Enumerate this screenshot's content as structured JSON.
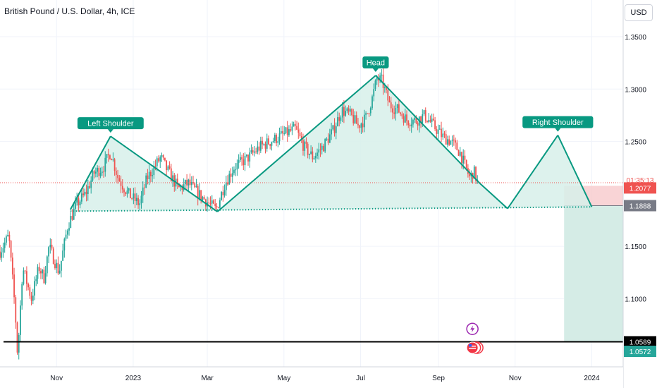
{
  "header": {
    "title": "British Pound / U.S. Dollar, 4h, ICE",
    "currency_button": "USD"
  },
  "colors": {
    "up": "#26a69a",
    "down": "#ef5350",
    "pattern_line": "#089981",
    "pattern_fill": "#d7f0ea",
    "neckline": "#089981",
    "stop_zone": "#f7c9cc",
    "target_zone": "#d5ece6",
    "support_line": "#000000",
    "price_line": "#ef5350",
    "grid": "#f0f3fa",
    "axis_text": "#131722",
    "icon_purple": "#9c27b0",
    "icon_red": "#f23645"
  },
  "chart_data": {
    "type": "candlestick",
    "symbol": "British Pound / U.S. Dollar, 4h, ICE",
    "x_ticks": [
      "Nov",
      "2023",
      "Mar",
      "May",
      "Jul",
      "Sep",
      "Nov",
      "2024"
    ],
    "x_tick_dates": [
      "2022-11-01",
      "2023-01-01",
      "2023-03-01",
      "2023-05-01",
      "2023-07-01",
      "2023-09-01",
      "2023-11-01",
      "2024-01-01"
    ],
    "y_ticks": [
      "1.3500",
      "1.3000",
      "1.2500",
      "1.1500",
      "1.1000"
    ],
    "y_tick_values": [
      1.35,
      1.3,
      1.25,
      1.15,
      1.1
    ],
    "ylim": [
      1.035,
      1.385
    ],
    "xlim": [
      "2022-09-17",
      "2024-01-26"
    ],
    "price_path": [
      [
        "2022-09-17",
        1.145
      ],
      [
        "2022-09-24",
        1.16
      ],
      [
        "2022-09-29",
        1.09
      ],
      [
        "2022-10-01",
        1.045
      ],
      [
        "2022-10-05",
        1.13
      ],
      [
        "2022-10-12",
        1.1
      ],
      [
        "2022-10-18",
        1.13
      ],
      [
        "2022-10-22",
        1.12
      ],
      [
        "2022-10-26",
        1.15
      ],
      [
        "2022-11-03",
        1.125
      ],
      [
        "2022-11-10",
        1.17
      ],
      [
        "2022-11-17",
        1.19
      ],
      [
        "2022-11-24",
        1.2
      ],
      [
        "2022-12-01",
        1.22
      ],
      [
        "2022-12-08",
        1.225
      ],
      [
        "2022-12-14",
        1.24
      ],
      [
        "2022-12-20",
        1.215
      ],
      [
        "2022-12-28",
        1.2
      ],
      [
        "2023-01-06",
        1.19
      ],
      [
        "2023-01-12",
        1.215
      ],
      [
        "2023-01-23",
        1.235
      ],
      [
        "2023-01-27",
        1.225
      ],
      [
        "2023-02-06",
        1.205
      ],
      [
        "2023-02-14",
        1.21
      ],
      [
        "2023-02-22",
        1.2
      ],
      [
        "2023-03-03",
        1.19
      ],
      [
        "2023-03-08",
        1.185
      ],
      [
        "2023-03-15",
        1.21
      ],
      [
        "2023-03-22",
        1.225
      ],
      [
        "2023-04-03",
        1.235
      ],
      [
        "2023-04-12",
        1.245
      ],
      [
        "2023-04-20",
        1.25
      ],
      [
        "2023-04-28",
        1.255
      ],
      [
        "2023-05-10",
        1.262
      ],
      [
        "2023-05-17",
        1.245
      ],
      [
        "2023-05-24",
        1.235
      ],
      [
        "2023-06-01",
        1.245
      ],
      [
        "2023-06-09",
        1.26
      ],
      [
        "2023-06-16",
        1.28
      ],
      [
        "2023-06-23",
        1.275
      ],
      [
        "2023-06-29",
        1.265
      ],
      [
        "2023-07-05",
        1.272
      ],
      [
        "2023-07-10",
        1.29
      ],
      [
        "2023-07-14",
        1.31
      ],
      [
        "2023-07-18",
        1.308
      ],
      [
        "2023-07-24",
        1.285
      ],
      [
        "2023-07-31",
        1.28
      ],
      [
        "2023-08-07",
        1.27
      ],
      [
        "2023-08-14",
        1.27
      ],
      [
        "2023-08-21",
        1.275
      ],
      [
        "2023-08-28",
        1.265
      ],
      [
        "2023-09-04",
        1.255
      ],
      [
        "2023-09-11",
        1.25
      ],
      [
        "2023-09-18",
        1.24
      ],
      [
        "2023-09-21",
        1.23
      ],
      [
        "2023-09-26",
        1.215
      ],
      [
        "2023-09-29",
        1.222
      ],
      [
        "2023-10-03",
        1.208
      ]
    ],
    "pattern": {
      "points": [
        [
          "2022-11-12",
          1.185
        ],
        [
          "2022-12-14",
          1.255
        ],
        [
          "2023-03-09",
          1.183
        ],
        [
          "2023-07-13",
          1.313
        ],
        [
          "2023-10-04",
          1.21
        ],
        [
          "2023-10-26",
          1.186
        ],
        [
          "2023-12-05",
          1.256
        ],
        [
          "2024-01-01",
          1.1876
        ]
      ],
      "labels": [
        {
          "text": "Left Shoulder",
          "date": "2022-12-14",
          "price": 1.255
        },
        {
          "text": "Head",
          "date": "2023-07-13",
          "price": 1.313
        },
        {
          "text": "Right Shoulder",
          "date": "2023-12-05",
          "price": 1.256
        }
      ],
      "neckline": [
        [
          "2022-11-12",
          1.1835
        ],
        [
          "2024-01-01",
          1.1876
        ]
      ]
    },
    "position": {
      "start": "2023-12-10",
      "end": "2024-01-26",
      "entry": 1.1888,
      "stop": 1.2077,
      "target": 1.0589
    },
    "support_line": 1.0589,
    "current_price_line": 1.2107,
    "price_tags": [
      {
        "label": "01:35:13",
        "price": 1.2107,
        "kind": "timer"
      },
      {
        "label": "1.2077",
        "price": 1.2077,
        "kind": "stop"
      },
      {
        "label": "1.1888",
        "price": 1.1888,
        "kind": "entry"
      },
      {
        "label": "1.0589",
        "price": 1.0589,
        "kind": "support"
      },
      {
        "label": "1.0572",
        "price": 1.0572,
        "kind": "low"
      }
    ],
    "events": [
      {
        "date": "2023-09-28",
        "price": 1.0712,
        "icon": "lightning-icon"
      },
      {
        "date": "2023-09-28",
        "price": 1.0532,
        "icon": "us-flag-icon"
      }
    ]
  }
}
